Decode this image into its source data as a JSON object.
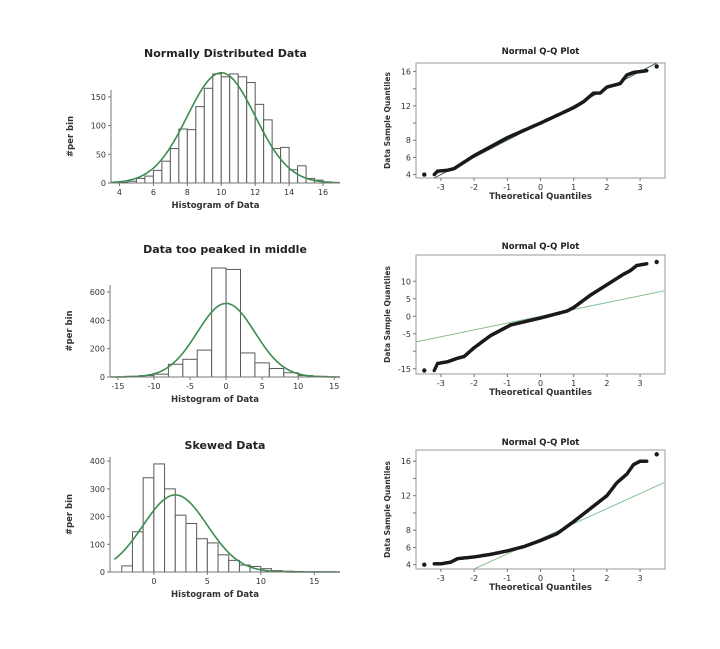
{
  "colors": {
    "bar_stroke": "#5a5a5a",
    "bar_fill": "#ffffff",
    "normal_curve": "#3d8c50",
    "qq_line": "#86bf92",
    "qq_points": "#1a1a1a",
    "qq_frame": "#9a9a9a"
  },
  "chart_data": [
    {
      "type": "bar",
      "kind": "histogram",
      "title": "Normally Distributed Data",
      "xlabel": "Histogram of Data",
      "ylabel": "#per bin",
      "xlim": [
        3.5,
        17
      ],
      "ylim": [
        0,
        162
      ],
      "bin_width": 0.5,
      "xticks": [
        4,
        6,
        8,
        10,
        12,
        14,
        16
      ],
      "yticks": [
        0,
        50,
        100,
        150
      ],
      "bin_starts": [
        4,
        4.5,
        5,
        5.5,
        6,
        6.5,
        7,
        7.5,
        8,
        8.5,
        9,
        9.5,
        10,
        10.5,
        11,
        11.5,
        12,
        12.5,
        13,
        13.5,
        14,
        14.5,
        15,
        15.5,
        16
      ],
      "values": [
        1,
        3,
        8,
        12,
        22,
        38,
        60,
        94,
        93,
        133,
        165,
        190,
        185,
        190,
        185,
        175,
        137,
        110,
        60,
        62,
        23,
        30,
        8,
        5,
        2
      ],
      "normal_fit": {
        "mean": 10,
        "sd": 2,
        "peak": 192
      }
    },
    {
      "type": "scatter",
      "kind": "qq",
      "title": "Normal Q-Q Plot",
      "xlabel": "Theoretical Quantiles",
      "ylabel": "Data Sample Quantiles",
      "xlim": [
        -3.75,
        3.75
      ],
      "ylim": [
        3.6,
        17
      ],
      "xticks": [
        -3,
        -2,
        -1,
        0,
        1,
        2,
        3
      ],
      "yticks": [
        4,
        6,
        8,
        10,
        12,
        14,
        16
      ],
      "ytick_labels": [
        "4",
        "6",
        "8",
        "",
        "12",
        "",
        "16"
      ],
      "reference_line": {
        "slope": 2,
        "intercept": 10
      },
      "points": [
        [
          -3.5,
          4
        ],
        [
          -3.2,
          4
        ],
        [
          -3.1,
          4.4
        ],
        [
          -2.8,
          4.5
        ],
        [
          -2.6,
          4.7
        ],
        [
          -2,
          6.2
        ],
        [
          -1,
          8.3
        ],
        [
          0,
          10
        ],
        [
          1,
          11.8
        ],
        [
          1.3,
          12.5
        ],
        [
          1.6,
          13.5
        ],
        [
          1.8,
          13.5
        ],
        [
          2,
          14.2
        ],
        [
          2.4,
          14.6
        ],
        [
          2.6,
          15.6
        ],
        [
          2.8,
          15.9
        ],
        [
          3.2,
          16.1
        ],
        [
          3.5,
          16.6
        ]
      ]
    },
    {
      "type": "bar",
      "kind": "histogram",
      "title": "Data too peaked in middle",
      "xlabel": "Histogram of Data",
      "ylabel": "#per bin",
      "xlim": [
        -16.1,
        15.8
      ],
      "ylim": [
        0,
        650
      ],
      "bin_width": 2,
      "xticks": [
        -15,
        -10,
        -5,
        0,
        5,
        10,
        15
      ],
      "yticks": [
        0,
        200,
        400,
        600
      ],
      "bin_starts": [
        -14,
        -12,
        -10,
        -8,
        -6,
        -4,
        -2,
        0,
        2,
        4,
        6,
        8,
        10,
        12
      ],
      "values": [
        5,
        10,
        20,
        90,
        125,
        190,
        770,
        760,
        170,
        100,
        60,
        30,
        10,
        5
      ],
      "normal_fit": {
        "mean": 0,
        "sd": 4,
        "peak": 520
      }
    },
    {
      "type": "scatter",
      "kind": "qq",
      "title": "Normal Q-Q Plot",
      "xlabel": "Theoretical Quantiles",
      "ylabel": "Data Sample Quantiles",
      "xlim": [
        -3.75,
        3.75
      ],
      "ylim": [
        -16.5,
        17.5
      ],
      "xticks": [
        -3,
        -2,
        -1,
        0,
        1,
        2,
        3
      ],
      "yticks": [
        -15,
        -10,
        -5,
        0,
        5,
        10
      ],
      "ytick_labels": [
        "-15",
        "",
        "-5",
        "0",
        "5",
        "10"
      ],
      "reference_line": {
        "slope": 1.95,
        "intercept": 0
      },
      "points": [
        [
          -3.5,
          -15.5
        ],
        [
          -3.2,
          -15.5
        ],
        [
          -3.1,
          -13.5
        ],
        [
          -2.8,
          -13
        ],
        [
          -2.5,
          -12
        ],
        [
          -2.3,
          -11.5
        ],
        [
          -2,
          -9
        ],
        [
          -1.5,
          -5.5
        ],
        [
          -0.9,
          -2.5
        ],
        [
          0,
          -0.5
        ],
        [
          0.8,
          1.5
        ],
        [
          1,
          2.5
        ],
        [
          1.5,
          6
        ],
        [
          2,
          9
        ],
        [
          2.5,
          12
        ],
        [
          2.7,
          13
        ],
        [
          2.9,
          14.5
        ],
        [
          3.2,
          15
        ],
        [
          3.5,
          15.5
        ]
      ]
    },
    {
      "type": "bar",
      "kind": "histogram",
      "title": "Skewed Data",
      "xlabel": "Histogram of Data",
      "ylabel": "#per bin",
      "xlim": [
        -4.1,
        17.4
      ],
      "ylim": [
        0,
        415
      ],
      "bin_width": 1,
      "xticks": [
        0,
        5,
        10,
        15
      ],
      "yticks": [
        0,
        100,
        200,
        300,
        400
      ],
      "bin_starts": [
        -3,
        -2,
        -1,
        0,
        1,
        2,
        3,
        4,
        5,
        6,
        7,
        8,
        9,
        10,
        11,
        12,
        13,
        14,
        15,
        16
      ],
      "values": [
        22,
        145,
        340,
        390,
        300,
        205,
        175,
        120,
        105,
        62,
        42,
        25,
        20,
        12,
        5,
        3,
        2,
        1,
        1,
        1
      ],
      "normal_fit": {
        "mean": 2,
        "sd": 3,
        "peak": 278
      }
    },
    {
      "type": "scatter",
      "kind": "qq",
      "title": "Normal Q-Q Plot",
      "xlabel": "Theoretical Quantiles",
      "ylabel": "Data Sample Quantiles",
      "xlim": [
        -3.75,
        3.75
      ],
      "ylim": [
        3.5,
        17.3
      ],
      "xticks": [
        -3,
        -2,
        -1,
        0,
        1,
        2,
        3
      ],
      "yticks": [
        4,
        6,
        8,
        10,
        12,
        14,
        16
      ],
      "ytick_labels": [
        "4",
        "6",
        "8",
        "",
        "12",
        "",
        "16"
      ],
      "reference_line": {
        "slope": 1.75,
        "intercept": 7
      },
      "points": [
        [
          -3.5,
          4
        ],
        [
          -3.2,
          4.1
        ],
        [
          -3,
          4.1
        ],
        [
          -2.7,
          4.3
        ],
        [
          -2.5,
          4.7
        ],
        [
          -2,
          4.9
        ],
        [
          -1.5,
          5.2
        ],
        [
          -1,
          5.6
        ],
        [
          -0.5,
          6.1
        ],
        [
          0,
          6.8
        ],
        [
          0.5,
          7.6
        ],
        [
          1,
          9
        ],
        [
          1.5,
          10.5
        ],
        [
          2,
          12
        ],
        [
          2.3,
          13.5
        ],
        [
          2.6,
          14.5
        ],
        [
          2.8,
          15.6
        ],
        [
          3,
          16
        ],
        [
          3.2,
          16
        ],
        [
          3.5,
          16.8
        ]
      ]
    }
  ]
}
